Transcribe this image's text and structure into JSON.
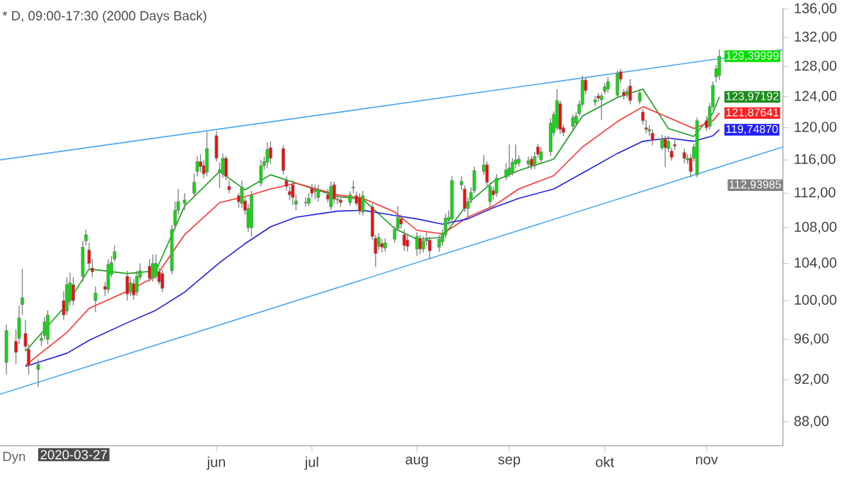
{
  "chart_data": {
    "type": "candlestick",
    "title": "* D, 09:00-17:30 (2000 Days Back)",
    "log": "y",
    "x": [
      "2020-03-27",
      "2020-03-30",
      "2020-03-31",
      "2020-04-01",
      "2020-04-02",
      "2020-04-03",
      "2020-04-06",
      "2020-04-07",
      "2020-04-08",
      "2020-04-09",
      "2020-04-14",
      "2020-04-15",
      "2020-04-16",
      "2020-04-17",
      "2020-04-20",
      "2020-04-21",
      "2020-04-22",
      "2020-04-23",
      "2020-04-24",
      "2020-04-27",
      "2020-04-28",
      "2020-04-29",
      "2020-04-30",
      "2020-05-04",
      "2020-05-05",
      "2020-05-06",
      "2020-05-07",
      "2020-05-08",
      "2020-05-11",
      "2020-05-12",
      "2020-05-13",
      "2020-05-14",
      "2020-05-15",
      "2020-05-18",
      "2020-05-19",
      "2020-05-20",
      "2020-05-22",
      "2020-05-25",
      "2020-05-26",
      "2020-05-27",
      "2020-05-28",
      "2020-05-29",
      "2020-06-01",
      "2020-06-02",
      "2020-06-03",
      "2020-06-04",
      "2020-06-05",
      "2020-06-08",
      "2020-06-09",
      "2020-06-10",
      "2020-06-11",
      "2020-06-12",
      "2020-06-15",
      "2020-06-16",
      "2020-06-17",
      "2020-06-18",
      "2020-06-22",
      "2020-06-23",
      "2020-06-24",
      "2020-06-25",
      "2020-06-26",
      "2020-06-29",
      "2020-06-30",
      "2020-07-01",
      "2020-07-02",
      "2020-07-03",
      "2020-07-06",
      "2020-07-07",
      "2020-07-08",
      "2020-07-09",
      "2020-07-10",
      "2020-07-13",
      "2020-07-14",
      "2020-07-15",
      "2020-07-16",
      "2020-07-17",
      "2020-07-20",
      "2020-07-21",
      "2020-07-22",
      "2020-07-23",
      "2020-07-24",
      "2020-07-27",
      "2020-07-28",
      "2020-07-29",
      "2020-07-30",
      "2020-07-31",
      "2020-08-03",
      "2020-08-04",
      "2020-08-05",
      "2020-08-06",
      "2020-08-07",
      "2020-08-10",
      "2020-08-11",
      "2020-08-12",
      "2020-08-13",
      "2020-08-14",
      "2020-08-17",
      "2020-08-18",
      "2020-08-19",
      "2020-08-20",
      "2020-08-21",
      "2020-08-24",
      "2020-08-25",
      "2020-08-26",
      "2020-08-27",
      "2020-08-28",
      "2020-08-31",
      "2020-09-01",
      "2020-09-02",
      "2020-09-03",
      "2020-09-04",
      "2020-09-07",
      "2020-09-08",
      "2020-09-09",
      "2020-09-10",
      "2020-09-11",
      "2020-09-14",
      "2020-09-15",
      "2020-09-16",
      "2020-09-17",
      "2020-09-18",
      "2020-09-21",
      "2020-09-22",
      "2020-09-23",
      "2020-09-24",
      "2020-09-25",
      "2020-09-28",
      "2020-09-29",
      "2020-09-30",
      "2020-10-01",
      "2020-10-02",
      "2020-10-05",
      "2020-10-06",
      "2020-10-07",
      "2020-10-08",
      "2020-10-09",
      "2020-10-12",
      "2020-10-13",
      "2020-10-14",
      "2020-10-15",
      "2020-10-16",
      "2020-10-19",
      "2020-10-20",
      "2020-10-21",
      "2020-10-22",
      "2020-10-23",
      "2020-10-26",
      "2020-10-27",
      "2020-10-28",
      "2020-10-29",
      "2020-10-30",
      "2020-11-02",
      "2020-11-03",
      "2020-11-04",
      "2020-11-05",
      "2020-11-06"
    ],
    "ohlc": [
      [
        93.7,
        97.5,
        92.5,
        96.9
      ],
      [
        95.8,
        97.0,
        93.5,
        94.7
      ],
      [
        96.1,
        99.5,
        95.5,
        98.2
      ],
      [
        99.6,
        103.4,
        98.5,
        100.3
      ],
      [
        96.6,
        98.0,
        94.8,
        95.3
      ],
      [
        95.0,
        95.5,
        92.5,
        93.4
      ],
      [
        93.0,
        94.0,
        91.3,
        93.5
      ],
      [
        95.9,
        96.6,
        95.3,
        96.1
      ],
      [
        96.4,
        98.3,
        96.0,
        97.8
      ],
      [
        96.0,
        99.0,
        95.5,
        98.5
      ],
      [
        100.0,
        101.0,
        98.0,
        98.5
      ],
      [
        98.9,
        102.5,
        98.5,
        101.7
      ],
      [
        100.0,
        103.0,
        99.5,
        101.9
      ],
      [
        101.7,
        102.5,
        99.5,
        100.0
      ],
      [
        102.6,
        106.5,
        102.0,
        105.8
      ],
      [
        106.5,
        107.8,
        106.0,
        107.2
      ],
      [
        105.5,
        106.3,
        103.5,
        104.0
      ],
      [
        103.5,
        104.5,
        102.5,
        103.1
      ],
      [
        100.0,
        101.5,
        98.8,
        100.8
      ],
      [
        101.5,
        102.0,
        100.5,
        101.2
      ],
      [
        101.2,
        104.5,
        100.8,
        103.9
      ],
      [
        102.8,
        104.8,
        102.5,
        104.1
      ],
      [
        104.5,
        106.0,
        104.2,
        105.3
      ],
      [
        102.6,
        103.2,
        100.0,
        100.7
      ],
      [
        100.9,
        102.5,
        100.5,
        101.9
      ],
      [
        101.8,
        102.3,
        100.1,
        100.6
      ],
      [
        100.9,
        103.2,
        100.5,
        102.6
      ],
      [
        102.5,
        104.0,
        102.2,
        103.2
      ],
      [
        103.7,
        104.5,
        102.0,
        102.4
      ],
      [
        102.4,
        105.0,
        102.0,
        104.0
      ],
      [
        102.6,
        105.0,
        102.3,
        104.0
      ],
      [
        103.1,
        103.5,
        101.7,
        102.0
      ],
      [
        102.9,
        103.3,
        100.9,
        101.3
      ],
      [
        103.2,
        108.3,
        102.8,
        107.8
      ],
      [
        108.3,
        111.0,
        107.8,
        110.0
      ],
      [
        110.0,
        112.5,
        109.5,
        111.0
      ],
      [
        110.8,
        112.0,
        110.0,
        111.2
      ],
      [
        112.0,
        114.3,
        111.5,
        113.3
      ],
      [
        114.6,
        116.5,
        114.0,
        115.8
      ],
      [
        115.8,
        116.7,
        114.5,
        115.2
      ],
      [
        115.3,
        116.0,
        113.8,
        114.3
      ],
      [
        114.5,
        119.5,
        114.0,
        117.4
      ],
      [
        119.0,
        119.6,
        115.8,
        116.2
      ],
      [
        114.6,
        115.7,
        112.6,
        114.8
      ],
      [
        114.3,
        116.8,
        113.8,
        116.2
      ],
      [
        116.2,
        116.5,
        113.5,
        114.0
      ],
      [
        112.8,
        113.5,
        112.0,
        112.4
      ],
      [
        111.7,
        112.0,
        110.3,
        111.0
      ],
      [
        110.8,
        113.5,
        110.3,
        112.7
      ],
      [
        111.1,
        111.5,
        109.5,
        110.0
      ],
      [
        108.0,
        110.7,
        107.5,
        110.2
      ],
      [
        108.0,
        112.3,
        107.0,
        111.8
      ],
      [
        113.2,
        116.0,
        112.8,
        115.3
      ],
      [
        115.3,
        116.4,
        114.8,
        115.8
      ],
      [
        115.7,
        118.2,
        115.0,
        117.3
      ],
      [
        117.5,
        118.3,
        115.5,
        116.2
      ],
      [
        117.4,
        117.8,
        114.2,
        114.7
      ],
      [
        113.5,
        114.0,
        112.3,
        112.8
      ],
      [
        112.2,
        112.8,
        111.2,
        111.8
      ],
      [
        113.0,
        113.5,
        110.6,
        111.5
      ],
      [
        110.7,
        111.8,
        110.0,
        111.1
      ],
      [
        110.9,
        111.5,
        110.4,
        110.9
      ],
      [
        110.8,
        112.0,
        110.5,
        111.4
      ],
      [
        112.6,
        113.1,
        111.5,
        112.0
      ],
      [
        112.2,
        113.0,
        111.3,
        112.4
      ],
      [
        111.5,
        113.0,
        111.0,
        112.4
      ],
      [
        111.8,
        112.5,
        110.9,
        111.3
      ],
      [
        110.4,
        113.4,
        110.0,
        112.8
      ],
      [
        113.0,
        113.4,
        110.8,
        111.3
      ],
      [
        111.2,
        111.8,
        110.7,
        111.3
      ],
      [
        111.2,
        111.6,
        110.4,
        110.9
      ],
      [
        110.9,
        112.2,
        110.5,
        111.8
      ],
      [
        112.6,
        113.5,
        112.0,
        112.7
      ],
      [
        111.7,
        112.2,
        110.5,
        110.8
      ],
      [
        111.5,
        112.0,
        109.5,
        109.9
      ],
      [
        109.8,
        112.3,
        109.4,
        111.7
      ],
      [
        110.4,
        110.8,
        106.6,
        107.0
      ],
      [
        106.8,
        107.2,
        103.6,
        105.1
      ],
      [
        105.9,
        107.4,
        105.5,
        106.9
      ],
      [
        106.2,
        106.7,
        105.2,
        105.8
      ],
      [
        105.7,
        106.8,
        105.3,
        106.3
      ],
      [
        106.7,
        108.2,
        106.3,
        107.8
      ],
      [
        107.9,
        110.5,
        107.6,
        109.2
      ],
      [
        109.0,
        109.5,
        107.9,
        108.4
      ],
      [
        107.2,
        107.8,
        105.4,
        106.0
      ],
      [
        106.6,
        107.2,
        105.3,
        105.9
      ],
      [
        105.6,
        107.5,
        104.8,
        107.0
      ],
      [
        106.8,
        107.2,
        105.0,
        105.6
      ],
      [
        105.6,
        107.0,
        105.2,
        106.5
      ],
      [
        106.5,
        107.5,
        106.0,
        106.7
      ],
      [
        106.6,
        107.0,
        104.5,
        105.4
      ],
      [
        105.8,
        107.2,
        105.3,
        106.7
      ],
      [
        106.4,
        107.8,
        106.0,
        107.4
      ],
      [
        107.2,
        109.6,
        106.8,
        109.1
      ],
      [
        108.8,
        110.0,
        108.3,
        109.2
      ],
      [
        109.0,
        114.0,
        108.6,
        113.5
      ],
      [
        113.0,
        114.0,
        112.4,
        113.4
      ],
      [
        112.5,
        112.9,
        109.8,
        110.2
      ],
      [
        110.2,
        111.5,
        108.9,
        111.0
      ],
      [
        111.2,
        112.7,
        110.8,
        112.1
      ],
      [
        112.3,
        115.2,
        112.0,
        114.7
      ],
      [
        114.6,
        116.6,
        114.2,
        115.4
      ],
      [
        115.4,
        115.8,
        112.9,
        113.3
      ],
      [
        111.0,
        113.3,
        110.0,
        112.8
      ],
      [
        112.3,
        112.7,
        111.3,
        111.8
      ],
      [
        112.0,
        114.3,
        111.6,
        113.8
      ],
      [
        113.9,
        115.6,
        113.5,
        114.8
      ],
      [
        114.3,
        117.9,
        113.9,
        115.0
      ],
      [
        114.5,
        116.2,
        114.1,
        115.7
      ],
      [
        115.5,
        117.9,
        115.0,
        116.0
      ],
      [
        115.6,
        116.6,
        115.2,
        116.1
      ],
      [
        115.5,
        116.4,
        115.1,
        115.9
      ],
      [
        116.1,
        116.5,
        114.8,
        115.3
      ],
      [
        115.3,
        117.0,
        114.9,
        116.4
      ],
      [
        117.6,
        118.0,
        116.3,
        116.7
      ],
      [
        116.0,
        117.6,
        115.6,
        117.0
      ],
      [
        117.0,
        121.2,
        116.5,
        120.6
      ],
      [
        119.4,
        122.1,
        118.9,
        121.7
      ],
      [
        120.0,
        125.0,
        119.7,
        123.5
      ],
      [
        123.1,
        123.5,
        119.2,
        119.8
      ],
      [
        120.0,
        120.4,
        119.0,
        119.4
      ],
      [
        120.2,
        121.7,
        119.8,
        121.3
      ],
      [
        120.6,
        122.0,
        120.2,
        121.5
      ],
      [
        121.8,
        123.5,
        121.5,
        123.0
      ],
      [
        123.0,
        126.8,
        122.6,
        126.2
      ],
      [
        126.2,
        126.6,
        124.3,
        124.8
      ],
      [
        123.3,
        124.1,
        122.8,
        123.6
      ],
      [
        124.1,
        124.5,
        123.3,
        123.8
      ],
      [
        123.6,
        124.5,
        121.0,
        124.1
      ],
      [
        124.7,
        125.8,
        124.3,
        125.3
      ],
      [
        125.0,
        126.6,
        124.5,
        126.0
      ],
      [
        124.2,
        127.5,
        123.8,
        127.1
      ],
      [
        127.3,
        127.7,
        125.8,
        126.3
      ],
      [
        124.6,
        125.0,
        123.6,
        124.1
      ],
      [
        124.2,
        125.2,
        123.8,
        124.7
      ],
      [
        125.4,
        126.3,
        123.0,
        123.5
      ],
      [
        123.4,
        125.0,
        123.0,
        124.5
      ],
      [
        122.0,
        122.4,
        120.4,
        120.9
      ],
      [
        120.0,
        121.0,
        119.3,
        119.8
      ],
      [
        119.6,
        120.3,
        119.0,
        119.8
      ],
      [
        119.3,
        119.8,
        117.8,
        118.4
      ],
      [
        117.5,
        119.1,
        117.2,
        118.6
      ],
      [
        118.6,
        119.0,
        115.1,
        117.5
      ],
      [
        117.4,
        119.0,
        117.0,
        118.3
      ],
      [
        117.1,
        117.5,
        115.9,
        116.3
      ],
      [
        117.9,
        118.5,
        117.2,
        117.7
      ],
      [
        116.9,
        117.4,
        115.6,
        116.2
      ],
      [
        116.0,
        116.7,
        115.5,
        116.2
      ],
      [
        116.2,
        116.7,
        113.9,
        114.6
      ],
      [
        116.2,
        118.0,
        115.8,
        117.6
      ],
      [
        114.2,
        121.3,
        113.9,
        120.9
      ],
      [
        120.9,
        121.5,
        119.6,
        120.0
      ],
      [
        120.2,
        123.2,
        119.8,
        122.7
      ],
      [
        122.7,
        126.0,
        122.3,
        125.5
      ],
      [
        126.6,
        128.2,
        125.9,
        127.7
      ],
      [
        126.8,
        130.3,
        126.2,
        129.4
      ]
    ],
    "series": [
      {
        "type": "line",
        "color": "#4aa8f0",
        "x": [
          "2020-03-25",
          "2020-11-26"
        ],
        "values": [
          116.0,
          130.3
        ]
      },
      {
        "type": "line",
        "color": "#4aa8f0",
        "x": [
          "2020-03-25",
          "2020-11-26"
        ],
        "values": [
          90.6,
          117.6
        ]
      },
      {
        "type": "line",
        "color": "#1a9c1a",
        "x": [
          "2020-04-02",
          "2020-04-15",
          "2020-04-22",
          "2020-05-04",
          "2020-05-13",
          "2020-05-22",
          "2020-06-02",
          "2020-06-10",
          "2020-06-18",
          "2020-06-26",
          "2020-07-09",
          "2020-07-17",
          "2020-07-27",
          "2020-08-03",
          "2020-08-11",
          "2020-08-19",
          "2020-08-27",
          "2020-09-04",
          "2020-09-15",
          "2020-09-24",
          "2020-10-05",
          "2020-10-13",
          "2020-10-21",
          "2020-10-29",
          "2020-11-04",
          "2020-11-06"
        ],
        "values": [
          94.8,
          99.6,
          103.4,
          102.9,
          103.2,
          110.5,
          114.6,
          112.4,
          114.2,
          113.2,
          111.6,
          111.3,
          107.9,
          106.7,
          106.9,
          110.8,
          113.4,
          114.7,
          116.1,
          121.5,
          123.9,
          125.0,
          119.9,
          118.9,
          121.9,
          123.97
        ]
      },
      {
        "type": "line",
        "color": "#ff3030",
        "x": [
          "2020-04-02",
          "2020-04-15",
          "2020-04-22",
          "2020-05-04",
          "2020-05-13",
          "2020-05-22",
          "2020-06-02",
          "2020-06-10",
          "2020-06-18",
          "2020-06-26",
          "2020-07-09",
          "2020-07-17",
          "2020-07-27",
          "2020-08-03",
          "2020-08-11",
          "2020-08-19",
          "2020-08-27",
          "2020-09-04",
          "2020-09-15",
          "2020-09-24",
          "2020-10-05",
          "2020-10-13",
          "2020-10-21",
          "2020-10-29",
          "2020-11-04",
          "2020-11-06"
        ],
        "values": [
          93.4,
          96.7,
          99.2,
          101.0,
          102.6,
          107.2,
          110.9,
          111.6,
          112.5,
          113.2,
          111.8,
          111.4,
          109.8,
          107.7,
          107.3,
          109.2,
          110.5,
          112.5,
          114.1,
          117.6,
          120.8,
          122.7,
          121.3,
          119.9,
          120.9,
          121.88
        ]
      },
      {
        "type": "line",
        "color": "#2020e0",
        "x": [
          "2020-04-02",
          "2020-04-15",
          "2020-04-22",
          "2020-05-04",
          "2020-05-13",
          "2020-05-22",
          "2020-06-02",
          "2020-06-10",
          "2020-06-18",
          "2020-06-26",
          "2020-07-09",
          "2020-07-17",
          "2020-07-27",
          "2020-08-03",
          "2020-08-11",
          "2020-08-19",
          "2020-08-27",
          "2020-09-04",
          "2020-09-15",
          "2020-09-24",
          "2020-10-05",
          "2020-10-13",
          "2020-10-21",
          "2020-10-29",
          "2020-11-04",
          "2020-11-06"
        ],
        "values": [
          93.3,
          94.6,
          95.9,
          97.7,
          99.0,
          100.9,
          104.1,
          106.2,
          108.1,
          109.2,
          109.9,
          110.0,
          109.4,
          109.0,
          108.4,
          109.0,
          110.3,
          111.4,
          112.5,
          114.4,
          116.8,
          118.3,
          118.7,
          118.3,
          119.0,
          119.75
        ]
      }
    ],
    "xlim": [
      "2020-03-25",
      "2020-11-26"
    ],
    "xticks": [
      {
        "value": "2020-06-01",
        "label": "jun"
      },
      {
        "value": "2020-07-01",
        "label": "jul"
      },
      {
        "value": "2020-08-03",
        "label": "aug"
      },
      {
        "value": "2020-09-01",
        "label": "sep"
      },
      {
        "value": "2020-10-01",
        "label": "okt"
      },
      {
        "value": "2020-11-02",
        "label": "nov"
      }
    ],
    "ylim": [
      85.8,
      136.1
    ],
    "yticks": [
      {
        "value": 88,
        "label": "88,00"
      },
      {
        "value": 92,
        "label": "92,00"
      },
      {
        "value": 96,
        "label": "96,00"
      },
      {
        "value": 100,
        "label": "100,00"
      },
      {
        "value": 104,
        "label": "104,00"
      },
      {
        "value": 108,
        "label": "108,00"
      },
      {
        "value": 112,
        "label": "112,00"
      },
      {
        "value": 116,
        "label": "116,00"
      },
      {
        "value": 120,
        "label": "120,00"
      },
      {
        "value": 124,
        "label": "124,00"
      },
      {
        "value": 128,
        "label": "128,00"
      },
      {
        "value": 132,
        "label": "132,00"
      },
      {
        "value": 136,
        "label": "136,00"
      }
    ],
    "annotations": [
      {
        "text": "129,39999",
        "x": "2020-11-06",
        "y": 129.4
      },
      {
        "text": "123,97192",
        "x": "2020-11-06",
        "y": 123.97
      },
      {
        "text": "121,87641",
        "x": "2020-11-06",
        "y": 121.88
      },
      {
        "text": "119,74870",
        "x": "2020-11-06",
        "y": 119.75
      },
      "112,93985",
      "2020-03-27",
      "Dyn"
    ]
  }
}
